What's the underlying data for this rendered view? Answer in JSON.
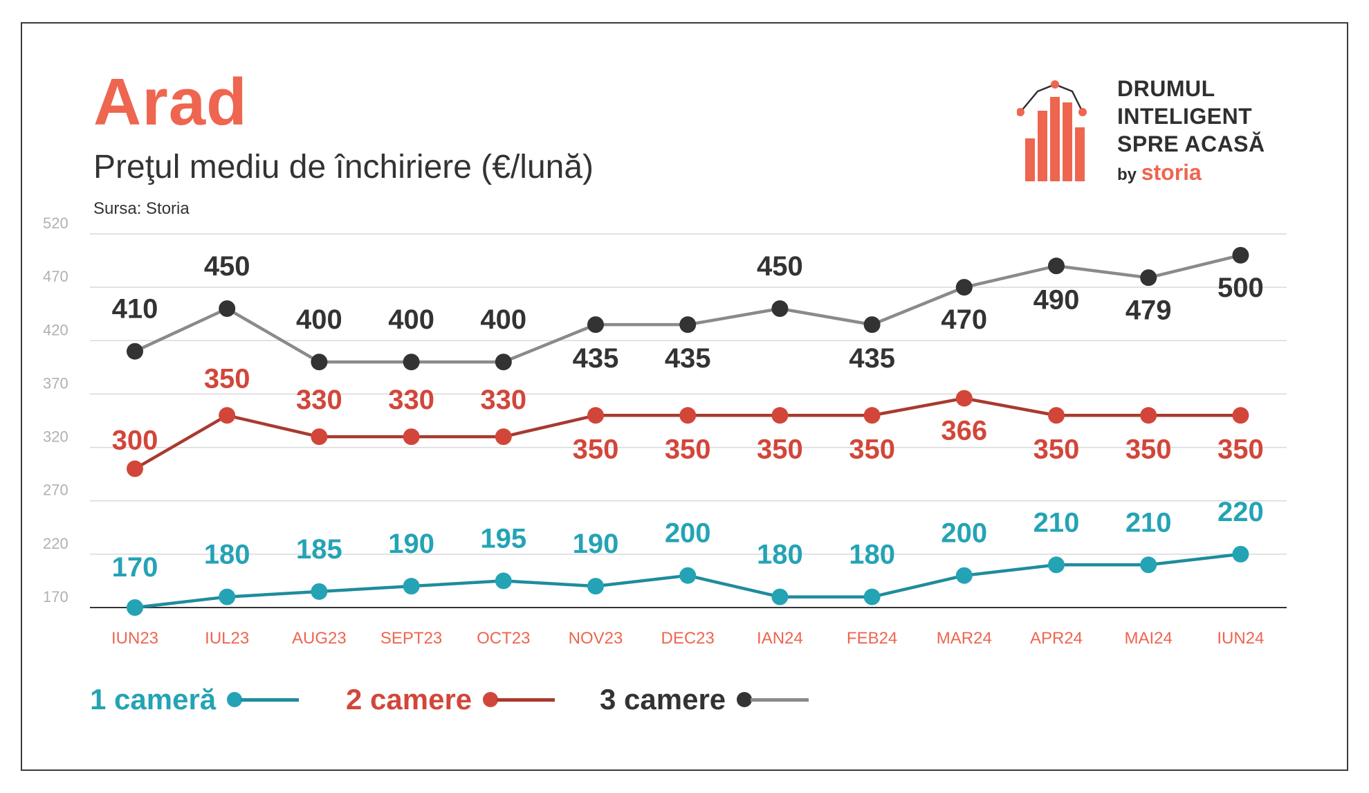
{
  "title": "Arad",
  "subtitle": "Preţul mediu de închiriere (€/lună)",
  "source": "Sursa: Storia",
  "logo": {
    "line1": "DRUMUL",
    "line2": "INTELIGENT",
    "line3": "SPRE ACASĂ",
    "by": "by",
    "brand": "storia"
  },
  "colors": {
    "accent": "#ee6550",
    "one_room": "#24a3b5",
    "one_room_line": "#1f8c9c",
    "two_rooms": "#d2463a",
    "two_rooms_line": "#a83a2f",
    "three_rooms": "#333333",
    "three_rooms_line": "#8a8a8a"
  },
  "legend": [
    {
      "label": "1 cameră",
      "key": "one"
    },
    {
      "label": "2 camere",
      "key": "two"
    },
    {
      "label": "3 camere",
      "key": "three"
    }
  ],
  "chart_data": {
    "type": "line",
    "title": "Preţul mediu de închiriere (€/lună)",
    "categories": [
      "IUN23",
      "IUL23",
      "AUG23",
      "SEPT23",
      "OCT23",
      "NOV23",
      "DEC23",
      "IAN24",
      "FEB24",
      "MAR24",
      "APR24",
      "MAI24",
      "IUN24"
    ],
    "ylim": [
      170,
      520
    ],
    "yticks": [
      170,
      220,
      270,
      320,
      370,
      420,
      470,
      520
    ],
    "grid": true,
    "legend_position": "bottom",
    "series": [
      {
        "name": "1 cameră",
        "values": [
          170,
          180,
          185,
          190,
          195,
          190,
          200,
          180,
          180,
          200,
          210,
          210,
          220
        ]
      },
      {
        "name": "2 camere",
        "values": [
          300,
          350,
          330,
          330,
          330,
          350,
          350,
          350,
          350,
          366,
          350,
          350,
          350
        ]
      },
      {
        "name": "3 camere",
        "values": [
          410,
          450,
          400,
          400,
          400,
          435,
          435,
          450,
          435,
          470,
          490,
          479,
          500
        ]
      }
    ]
  }
}
